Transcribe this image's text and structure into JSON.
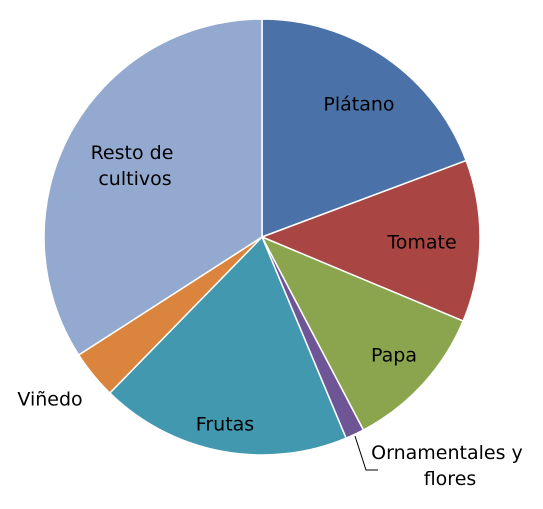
{
  "chart_data": {
    "type": "pie",
    "categories": [
      "Plátano",
      "Tomate",
      "Papa",
      "Ornamentales y flores",
      "Frutas",
      "Viñedo",
      "Resto de cultivos"
    ],
    "values": [
      19.3,
      12,
      11,
      1.4,
      18.6,
      3.6,
      34.1
    ],
    "colors": [
      "#4a72a8",
      "#a94644",
      "#8ba54e",
      "#6e5596",
      "#4198af",
      "#db843d",
      "#93a9cf"
    ]
  }
}
